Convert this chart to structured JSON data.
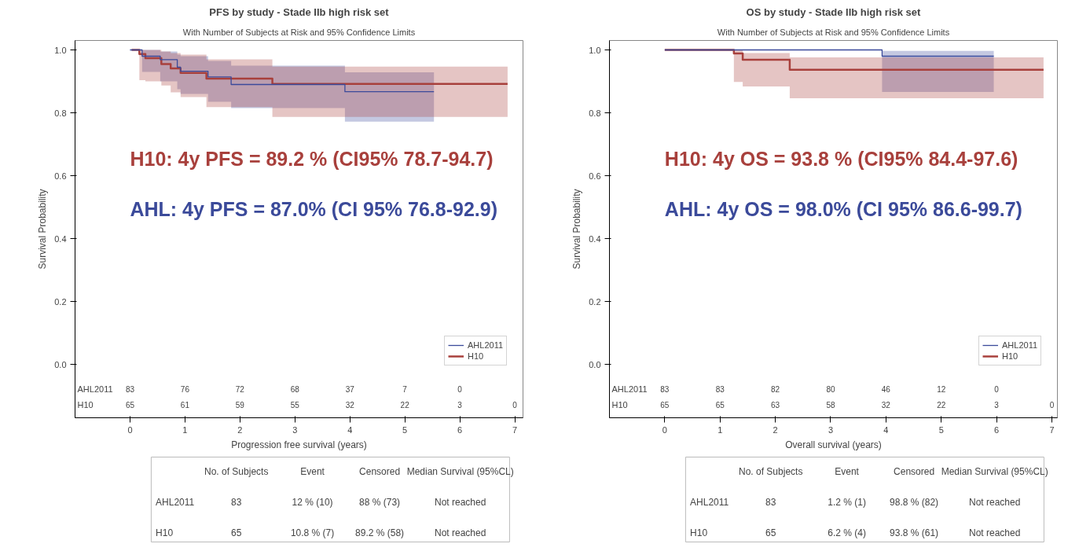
{
  "chart_data": [
    {
      "type": "step",
      "title": "PFS by study - Stade IIb high risk set",
      "subtitle": "With Number of Subjects at Risk and 95% Confidence Limits",
      "xlabel": "Progression free survival (years)",
      "ylabel": "Survival Probability",
      "xlim": [
        -1.0,
        7.15
      ],
      "xticks": [
        0,
        1,
        2,
        3,
        4,
        5,
        6,
        7
      ],
      "ylim": [
        -0.17,
        1.03
      ],
      "yticks": [
        {
          "value": 0,
          "label": "0.0"
        },
        {
          "value": 0.2,
          "label": "0.2"
        },
        {
          "value": 0.4,
          "label": "0.4"
        },
        {
          "value": 0.6,
          "label": "0.6"
        },
        {
          "value": 0.8,
          "label": "0.8"
        },
        {
          "value": 1,
          "label": "1.0"
        }
      ],
      "grid": false,
      "legend": "bottom right",
      "series": [
        {
          "name": "AHL2011",
          "color": "#3b4a9a",
          "x": [
            0,
            0.22,
            0.55,
            0.86,
            0.92,
            1.42,
            1.84,
            3.91,
            5.53
          ],
          "values": [
            1,
            0.98,
            0.969,
            0.945,
            0.932,
            0.914,
            0.89,
            0.867,
            0.867
          ],
          "lower": [
            1,
            0.93,
            0.9,
            0.875,
            0.86,
            0.835,
            0.815,
            0.772,
            0.772
          ],
          "upper": [
            1,
            1,
            0.995,
            0.985,
            0.98,
            0.965,
            0.95,
            0.929,
            0.929
          ]
        },
        {
          "name": "H10",
          "color": "#a8403c",
          "x": [
            0.03,
            0.17,
            0.28,
            0.57,
            0.74,
            0.92,
            1.39,
            2.59,
            6.87
          ],
          "values": [
            1,
            0.987,
            0.974,
            0.955,
            0.941,
            0.927,
            0.909,
            0.892,
            0.892
          ],
          "lower": [
            1,
            0.904,
            0.9,
            0.887,
            0.865,
            0.85,
            0.818,
            0.787,
            0.787
          ],
          "upper": [
            1,
            1,
            1,
            0.995,
            0.99,
            0.985,
            0.97,
            0.947,
            0.947
          ]
        }
      ],
      "annotations": [
        "H10: 4y PFS = 89.2 % (CI95% 78.7-94.7)",
        "AHL: 4y PFS = 87.0% (CI 95% 76.8-92.9)",
        "AHL2011\t83\t76\t72\t68\t37\t7\t0",
        "H10\t65\t61\t59\t55\t32\t22\t3\t0",
        "\tNo. of Subjects\tEvent\tCensored\tMedian Survival (95%CL)",
        "AHL2011\t83\t12 % (10)\t88 % (73)\tNot reached",
        "H10\t65\t10.8 % (7)\t89.2 % (58)\tNot reached"
      ]
    },
    {
      "type": "step",
      "title": "OS by study - Stade IIb high risk set",
      "subtitle": "With Number of Subjects at Risk and 95% Confidence Limits",
      "xlabel": "Overall survival (years)",
      "ylabel": "Survival Probability",
      "xlim": [
        -1.0,
        7.1
      ],
      "xticks": [
        0,
        1,
        2,
        3,
        4,
        5,
        6,
        7
      ],
      "ylim": [
        -0.17,
        1.03
      ],
      "yticks": [
        {
          "value": 0,
          "label": "0.0"
        },
        {
          "value": 0.2,
          "label": "0.2"
        },
        {
          "value": 0.4,
          "label": "0.4"
        },
        {
          "value": 0.6,
          "label": "0.6"
        },
        {
          "value": 0.8,
          "label": "0.8"
        },
        {
          "value": 1,
          "label": "1.0"
        }
      ],
      "grid": false,
      "legend": "bottom right",
      "series": [
        {
          "name": "AHL2011",
          "color": "#3b4a9a",
          "x": [
            0,
            3.93,
            5.95
          ],
          "values": [
            1,
            0.98,
            0.98
          ],
          "lower": [
            1,
            0.866,
            0.866
          ],
          "upper": [
            1,
            0.997,
            0.997
          ]
        },
        {
          "name": "H10",
          "color": "#a8403c",
          "x": [
            0,
            1.25,
            1.41,
            2.26,
            6.85
          ],
          "values": [
            1,
            0.989,
            0.969,
            0.937,
            0.937
          ],
          "lower": [
            1,
            0.898,
            0.884,
            0.846,
            0.846
          ],
          "upper": [
            1,
            1,
            0.99,
            0.976,
            0.976
          ]
        }
      ],
      "annotations": [
        "H10: 4y OS = 93.8 % (CI95% 84.4-97.6)",
        "AHL: 4y OS = 98.0% (CI 95% 86.6-99.7)",
        "AHL2011\t83\t83\t82\t80\t46\t12\t0",
        "H10\t65\t65\t63\t58\t32\t22\t3\t0",
        "\tNo. of Subjects\tEvent\tCensored\tMedian Survival (95%CL)",
        "AHL2011\t83\t1.2 % (1)\t98.8 % (82)\tNot reached",
        "H10\t65\t6.2 % (4)\t93.8 % (61)\tNot reached"
      ]
    }
  ]
}
